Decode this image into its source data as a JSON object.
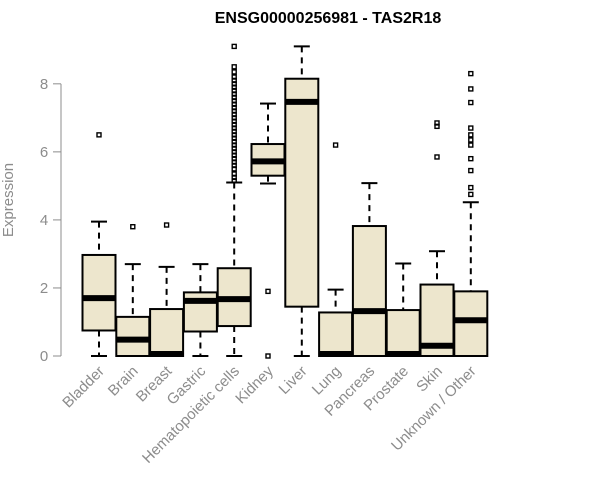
{
  "chart_data": {
    "type": "box",
    "title": "ENSG00000256981 - TAS2R18",
    "xlabel": "",
    "ylabel": "Expression",
    "ylim": [
      0,
      9.2
    ],
    "yticks": [
      0,
      2,
      4,
      6,
      8
    ],
    "categories": [
      {
        "label": "Bladder",
        "whisker_low": 0.0,
        "q1": 0.75,
        "median": 1.7,
        "q3": 2.97,
        "whisker_high": 3.95,
        "outliers": [
          6.5
        ]
      },
      {
        "label": "Brain",
        "whisker_low": 0.0,
        "q1": 0.0,
        "median": 0.48,
        "q3": 1.15,
        "whisker_high": 2.7,
        "outliers": [
          3.8
        ]
      },
      {
        "label": "Breast",
        "whisker_low": 0.0,
        "q1": 0.0,
        "median": 0.03,
        "q3": 1.38,
        "whisker_high": 2.62,
        "outliers": [
          3.85
        ]
      },
      {
        "label": "Gastric",
        "whisker_low": 0.0,
        "q1": 0.72,
        "median": 1.62,
        "q3": 1.87,
        "whisker_high": 2.7,
        "outliers": []
      },
      {
        "label": "Hematopoietic cells",
        "whisker_low": 0.0,
        "q1": 0.88,
        "median": 1.67,
        "q3": 2.58,
        "whisker_high": 5.1,
        "outliers": [
          5.15,
          5.25,
          5.35,
          5.5,
          5.6,
          5.7,
          5.8,
          5.9,
          6.0,
          6.1,
          6.2,
          6.3,
          6.4,
          6.5,
          6.6,
          6.7,
          6.8,
          6.9,
          7.0,
          7.1,
          7.2,
          7.3,
          7.4,
          7.5,
          7.6,
          7.7,
          7.8,
          7.9,
          8.0,
          8.1,
          8.2,
          8.35,
          8.5,
          9.1
        ]
      },
      {
        "label": "Kidney",
        "whisker_low": 5.07,
        "q1": 5.3,
        "median": 5.72,
        "q3": 6.23,
        "whisker_high": 7.42,
        "outliers": [
          1.9,
          0.0
        ]
      },
      {
        "label": "Liver",
        "whisker_low": 0.0,
        "q1": 1.45,
        "median": 7.47,
        "q3": 8.15,
        "whisker_high": 9.1,
        "outliers": []
      },
      {
        "label": "Lung",
        "whisker_low": 0.0,
        "q1": 0.0,
        "median": 0.03,
        "q3": 1.28,
        "whisker_high": 1.95,
        "outliers": [
          6.2
        ]
      },
      {
        "label": "Pancreas",
        "whisker_low": 0.0,
        "q1": 0.0,
        "median": 1.32,
        "q3": 3.82,
        "whisker_high": 5.08,
        "outliers": []
      },
      {
        "label": "Prostate",
        "whisker_low": 0.0,
        "q1": 0.0,
        "median": 0.03,
        "q3": 1.35,
        "whisker_high": 2.72,
        "outliers": []
      },
      {
        "label": "Skin",
        "whisker_low": 0.0,
        "q1": 0.0,
        "median": 0.3,
        "q3": 2.1,
        "whisker_high": 3.08,
        "outliers": [
          5.85,
          6.75,
          6.85
        ]
      },
      {
        "label": "Unknown / Other",
        "whisker_low": 0.0,
        "q1": 0.0,
        "median": 1.05,
        "q3": 1.9,
        "whisker_high": 4.52,
        "outliers": [
          4.75,
          4.95,
          5.45,
          5.8,
          6.2,
          6.35,
          6.5,
          6.7,
          7.45,
          7.85,
          8.3
        ]
      }
    ]
  }
}
